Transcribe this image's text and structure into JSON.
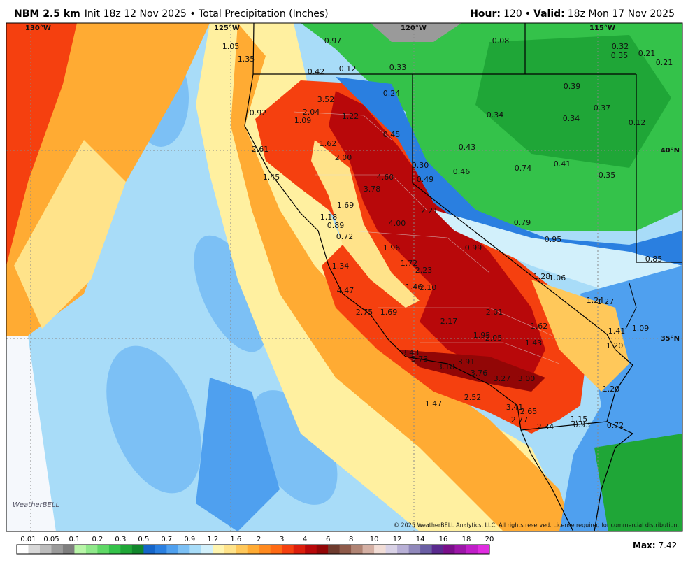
{
  "header": {
    "model": "NBM 2.5 km",
    "subtitle": "Init 18z 12 Nov 2025 • Total Precipitation (Inches)",
    "hour_label": "Hour:",
    "hour": "120",
    "separator": "•",
    "valid_label": "Valid:",
    "valid": "18z Mon 17 Nov 2025"
  },
  "grid_labels": [
    "130°W",
    "125°W",
    "120°W",
    "115°W",
    "40°N",
    "35°N"
  ],
  "point_values": [
    "1.05",
    "0.97",
    "0.08",
    "0.32",
    "0.35",
    "0.21",
    "0.21",
    "1.35",
    "0.42",
    "0.12",
    "0.33",
    "0.24",
    "0.39",
    "3.52",
    "2.04",
    "1.09",
    "0.92",
    "1.22",
    "0.34",
    "0.34",
    "0.37",
    "0.12",
    "0.45",
    "1.62",
    "2.61",
    "0.43",
    "2.00",
    "0.30",
    "0.46",
    "0.74",
    "0.41",
    "0.35",
    "4.60",
    "1.45",
    "0.49",
    "3.78",
    "1.69",
    "2.21",
    "1.18",
    "0.89",
    "4.00",
    "0.79",
    "0.72",
    "0.95",
    "1.96",
    "0.99",
    "0.85",
    "1.72",
    "2.23",
    "1.34",
    "1.28",
    "1.06",
    "1.46",
    "2.10",
    "4.47",
    "1.24",
    "1.27",
    "2.75",
    "1.69",
    "2.01",
    "2.17",
    "1.62",
    "1.41",
    "1.09",
    "1.95",
    "2.05",
    "1.43",
    "1.20",
    "3.43",
    "3.73",
    "3.91",
    "3.18",
    "3.76",
    "3.27",
    "3.00",
    "1.20",
    "2.52",
    "1.47",
    "3.41",
    "2.65",
    "2.77",
    "1.15",
    "2.34",
    "0.93",
    "0.72"
  ],
  "logo": "WeatherBELL",
  "copyright": "© 2025 WeatherBELL Analytics, LLC. All rights reserved. License required for commercial distribution.",
  "colorbar": {
    "labels": [
      "0.01",
      "0.05",
      "0.1",
      "0.2",
      "0.3",
      "0.5",
      "0.7",
      "0.9",
      "1.2",
      "1.6",
      "2",
      "3",
      "4",
      "6",
      "8",
      "10",
      "12",
      "14",
      "16",
      "18",
      "20"
    ],
    "colors": [
      "#ffffff",
      "#d8d8d8",
      "#bcbcbc",
      "#9a9a9a",
      "#7e7e7e",
      "#b8f5a8",
      "#8fe88a",
      "#5fd866",
      "#34c24a",
      "#1fa637",
      "#11862c",
      "#1565c9",
      "#2a7fe0",
      "#4fa0ef",
      "#7cc0f5",
      "#a8dcf8",
      "#d2f0fb",
      "#fff5b0",
      "#ffe38a",
      "#ffc85a",
      "#ffab33",
      "#ff8a1f",
      "#ff6a14",
      "#f5400f",
      "#dc1e0c",
      "#b8080a",
      "#920606",
      "#6e3b2e",
      "#8e5a4a",
      "#b08474",
      "#d4b0a4",
      "#f1ddd6",
      "#d9d2e6",
      "#b8b0d6",
      "#9088bb",
      "#6a5ea4",
      "#5a2a8e",
      "#7a0f8a",
      "#9c16a8",
      "#c01ec8",
      "#e02de0"
    ]
  },
  "footer": {
    "max_label": "Max:",
    "max_value": "7.42"
  }
}
